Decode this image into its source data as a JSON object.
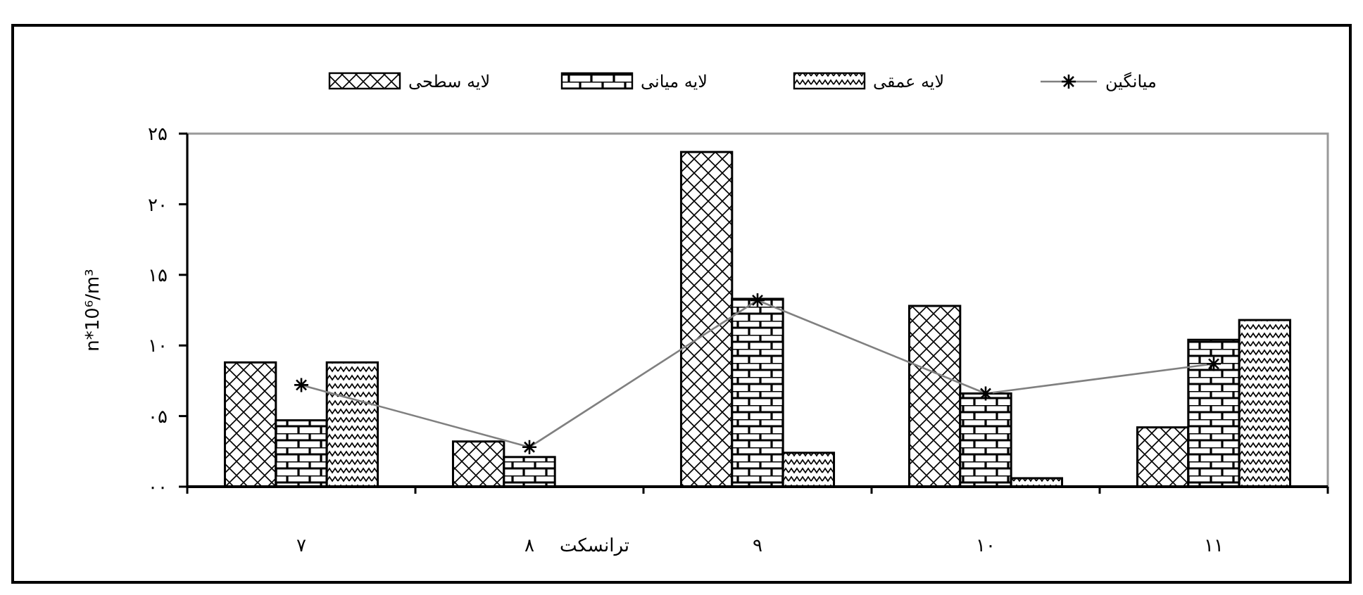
{
  "chart_data": {
    "type": "bar",
    "xlabel": "ترانسکت",
    "ylabel": "n*10⁶/m³",
    "categories": [
      "۷",
      "۸",
      "۹",
      "۱۰",
      "۱۱"
    ],
    "series": [
      {
        "name": "لایه سطحی",
        "color": "#000000",
        "values": [
          8.8,
          3.2,
          23.7,
          12.8,
          4.2
        ]
      },
      {
        "name": "لایه میانی",
        "color": "#000000",
        "values": [
          4.7,
          2.1,
          13.3,
          6.6,
          10.4
        ]
      },
      {
        "name": "لایه عمقی",
        "color": "#000000",
        "values": [
          8.8,
          0,
          2.4,
          0.6,
          11.8
        ]
      },
      {
        "name": "میانگین",
        "type": "line",
        "color": "#808080",
        "marker": "cross",
        "values": [
          7.2,
          2.8,
          13.2,
          6.6,
          8.7
        ]
      }
    ],
    "ylim": [
      0,
      25
    ],
    "yticks": [
      {
        "value": 0,
        "label": "۰۰"
      },
      {
        "value": 5,
        "label": "۰۵"
      },
      {
        "value": 10,
        "label": "۱۰"
      },
      {
        "value": 15,
        "label": "۱۵"
      },
      {
        "value": 20,
        "label": "۲۰"
      },
      {
        "value": 25,
        "label": "۲۵"
      }
    ],
    "grid": false,
    "legend": "top"
  }
}
